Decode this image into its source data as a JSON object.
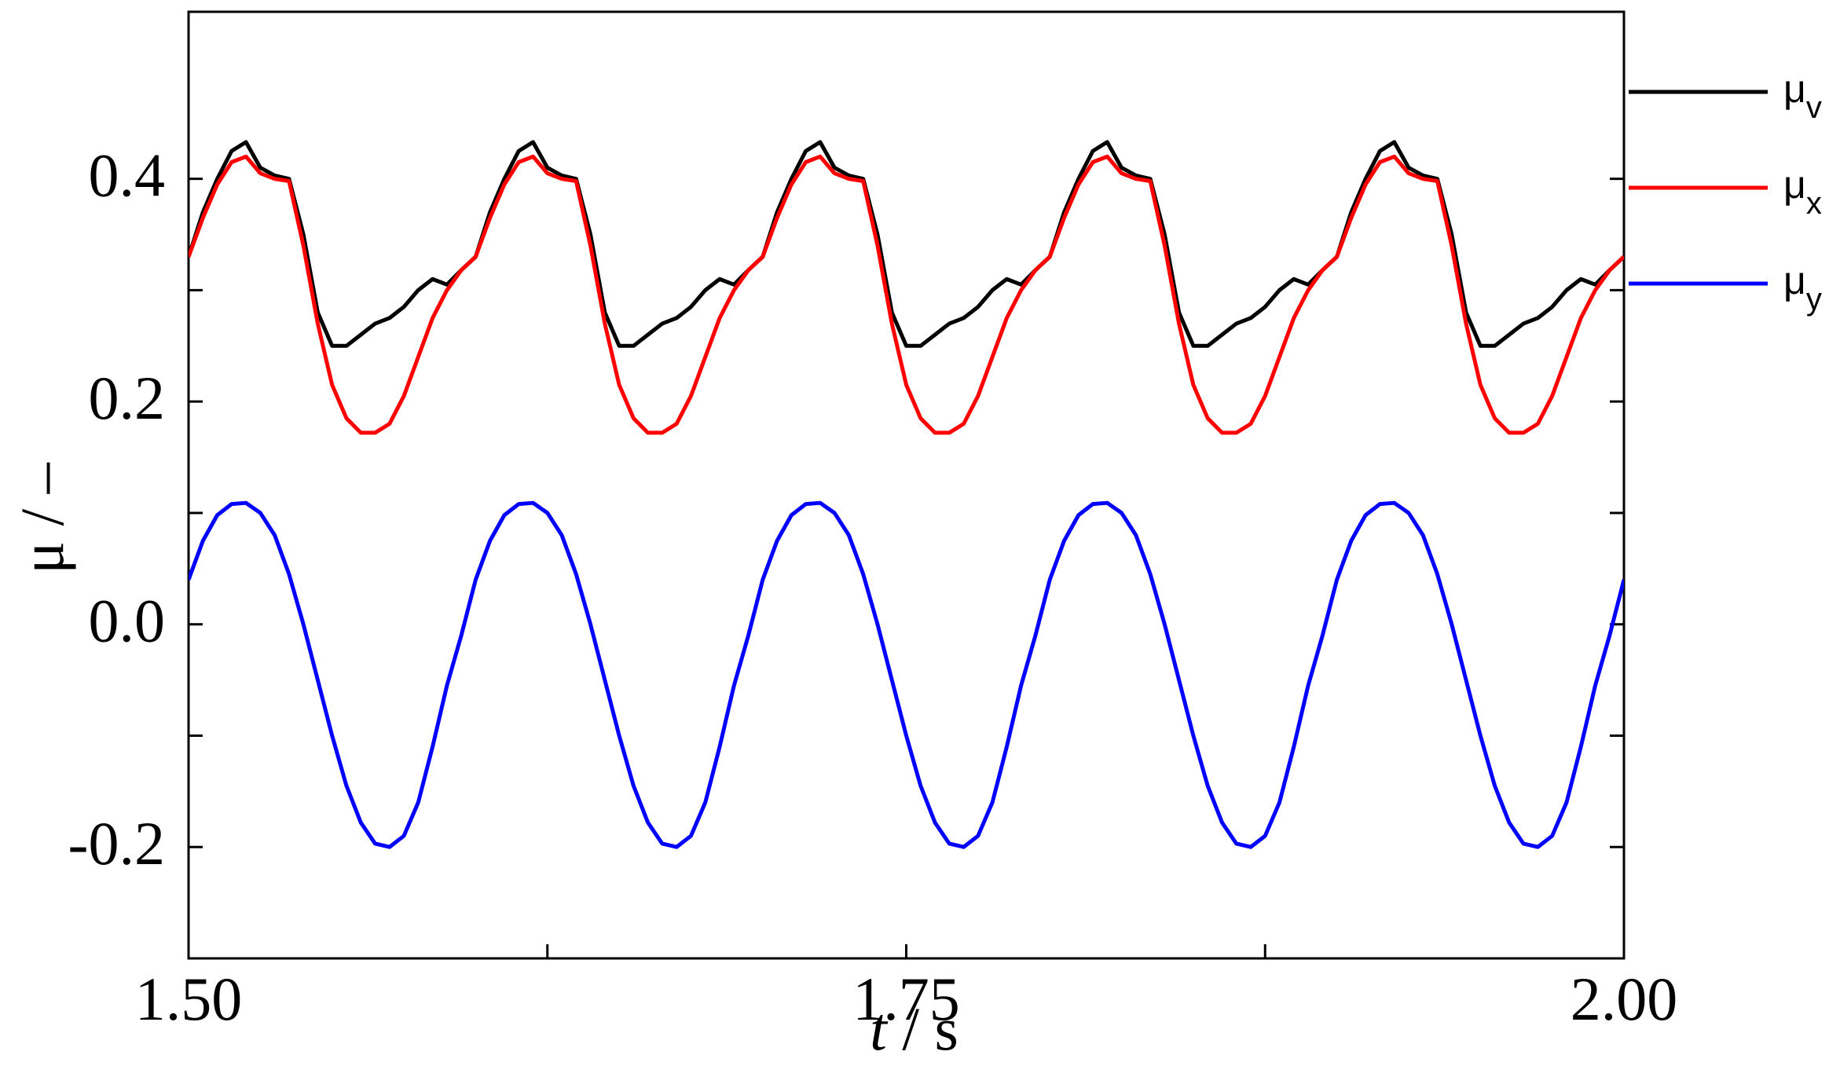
{
  "chart_data": {
    "type": "line",
    "x_label": "t / s",
    "y_label": "μ / –",
    "xlim": [
      1.5,
      2.0
    ],
    "xticks": [
      {
        "value": 1.5,
        "label": "1.50"
      },
      {
        "value": 1.75,
        "label": "1.75"
      },
      {
        "value": 2,
        "label": "2.00"
      }
    ],
    "xminorticks": [
      1.625,
      1.875
    ],
    "ylim": [
      -0.3,
      0.55
    ],
    "yticks": [
      {
        "value": -0.2,
        "label": "-0.2"
      },
      {
        "value": 0,
        "label": "0.0"
      },
      0.2,
      0.4
    ],
    "yminorticks": [
      -0.1,
      0.1,
      0.3
    ],
    "x": [
      1.5,
      1.505,
      1.51,
      1.515,
      1.52,
      1.525,
      1.53,
      1.535,
      1.54,
      1.545,
      1.55,
      1.555,
      1.56,
      1.565,
      1.57,
      1.575,
      1.58,
      1.585,
      1.59,
      1.595,
      1.6,
      1.605,
      1.61,
      1.615,
      1.62,
      1.625,
      1.63,
      1.635,
      1.64,
      1.645,
      1.65,
      1.655,
      1.66,
      1.665,
      1.67,
      1.675,
      1.68,
      1.685,
      1.69,
      1.695,
      1.7,
      1.705,
      1.71,
      1.715,
      1.72,
      1.725,
      1.73,
      1.735,
      1.74,
      1.745,
      1.75,
      1.755,
      1.76,
      1.765,
      1.77,
      1.775,
      1.78,
      1.785,
      1.79,
      1.795,
      1.8,
      1.805,
      1.81,
      1.815,
      1.82,
      1.825,
      1.83,
      1.835,
      1.84,
      1.845,
      1.85,
      1.855,
      1.86,
      1.865,
      1.87,
      1.875,
      1.88,
      1.885,
      1.89,
      1.895,
      1.9,
      1.905,
      1.91,
      1.915,
      1.92,
      1.925,
      1.93,
      1.935,
      1.94,
      1.945,
      1.95,
      1.955,
      1.96,
      1.965,
      1.97,
      1.975,
      1.98,
      1.985,
      1.99,
      1.995,
      2.0
    ],
    "series": [
      {
        "name": "μv",
        "color": "#000000",
        "values": [
          0.33,
          0.37,
          0.4,
          0.425,
          0.433,
          0.41,
          0.403,
          0.4,
          0.35,
          0.28,
          0.25,
          0.25,
          0.26,
          0.27,
          0.275,
          0.285,
          0.3,
          0.31,
          0.305,
          0.318,
          0.33,
          0.37,
          0.4,
          0.425,
          0.433,
          0.41,
          0.403,
          0.4,
          0.35,
          0.28,
          0.25,
          0.25,
          0.26,
          0.27,
          0.275,
          0.285,
          0.3,
          0.31,
          0.305,
          0.318,
          0.33,
          0.37,
          0.4,
          0.425,
          0.433,
          0.41,
          0.403,
          0.4,
          0.35,
          0.28,
          0.25,
          0.25,
          0.26,
          0.27,
          0.275,
          0.285,
          0.3,
          0.31,
          0.305,
          0.318,
          0.33,
          0.37,
          0.4,
          0.425,
          0.433,
          0.41,
          0.403,
          0.4,
          0.35,
          0.28,
          0.25,
          0.25,
          0.26,
          0.27,
          0.275,
          0.285,
          0.3,
          0.31,
          0.305,
          0.318,
          0.33,
          0.37,
          0.4,
          0.425,
          0.433,
          0.41,
          0.403,
          0.4,
          0.35,
          0.28,
          0.25,
          0.25,
          0.26,
          0.27,
          0.275,
          0.285,
          0.3,
          0.31,
          0.305,
          0.318,
          0.33
        ]
      },
      {
        "name": "μx",
        "color": "#ff0000",
        "values": [
          0.33,
          0.365,
          0.395,
          0.415,
          0.42,
          0.405,
          0.4,
          0.398,
          0.34,
          0.27,
          0.215,
          0.185,
          0.172,
          0.172,
          0.18,
          0.205,
          0.24,
          0.275,
          0.3,
          0.318,
          0.33,
          0.365,
          0.395,
          0.415,
          0.42,
          0.405,
          0.4,
          0.398,
          0.34,
          0.27,
          0.215,
          0.185,
          0.172,
          0.172,
          0.18,
          0.205,
          0.24,
          0.275,
          0.3,
          0.318,
          0.33,
          0.365,
          0.395,
          0.415,
          0.42,
          0.405,
          0.4,
          0.398,
          0.34,
          0.27,
          0.215,
          0.185,
          0.172,
          0.172,
          0.18,
          0.205,
          0.24,
          0.275,
          0.3,
          0.318,
          0.33,
          0.365,
          0.395,
          0.415,
          0.42,
          0.405,
          0.4,
          0.398,
          0.34,
          0.27,
          0.215,
          0.185,
          0.172,
          0.172,
          0.18,
          0.205,
          0.24,
          0.275,
          0.3,
          0.318,
          0.33,
          0.365,
          0.395,
          0.415,
          0.42,
          0.405,
          0.4,
          0.398,
          0.34,
          0.27,
          0.215,
          0.185,
          0.172,
          0.172,
          0.18,
          0.205,
          0.24,
          0.275,
          0.3,
          0.318,
          0.33
        ]
      },
      {
        "name": "μy",
        "color": "#0000ff",
        "values": [
          0.04,
          0.075,
          0.098,
          0.108,
          0.109,
          0.1,
          0.08,
          0.045,
          0.0,
          -0.05,
          -0.1,
          -0.145,
          -0.178,
          -0.197,
          -0.2,
          -0.19,
          -0.16,
          -0.11,
          -0.055,
          -0.01,
          0.04,
          0.075,
          0.098,
          0.108,
          0.109,
          0.1,
          0.08,
          0.045,
          0.0,
          -0.05,
          -0.1,
          -0.145,
          -0.178,
          -0.197,
          -0.2,
          -0.19,
          -0.16,
          -0.11,
          -0.055,
          -0.01,
          0.04,
          0.075,
          0.098,
          0.108,
          0.109,
          0.1,
          0.08,
          0.045,
          0.0,
          -0.05,
          -0.1,
          -0.145,
          -0.178,
          -0.197,
          -0.2,
          -0.19,
          -0.16,
          -0.11,
          -0.055,
          -0.01,
          0.04,
          0.075,
          0.098,
          0.108,
          0.109,
          0.1,
          0.08,
          0.045,
          0.0,
          -0.05,
          -0.1,
          -0.145,
          -0.178,
          -0.197,
          -0.2,
          -0.19,
          -0.16,
          -0.11,
          -0.055,
          -0.01,
          0.04,
          0.075,
          0.098,
          0.108,
          0.109,
          0.1,
          0.08,
          0.045,
          0.0,
          -0.05,
          -0.1,
          -0.145,
          -0.178,
          -0.197,
          -0.2,
          -0.19,
          -0.16,
          -0.11,
          -0.055,
          -0.01,
          0.04
        ]
      }
    ]
  }
}
